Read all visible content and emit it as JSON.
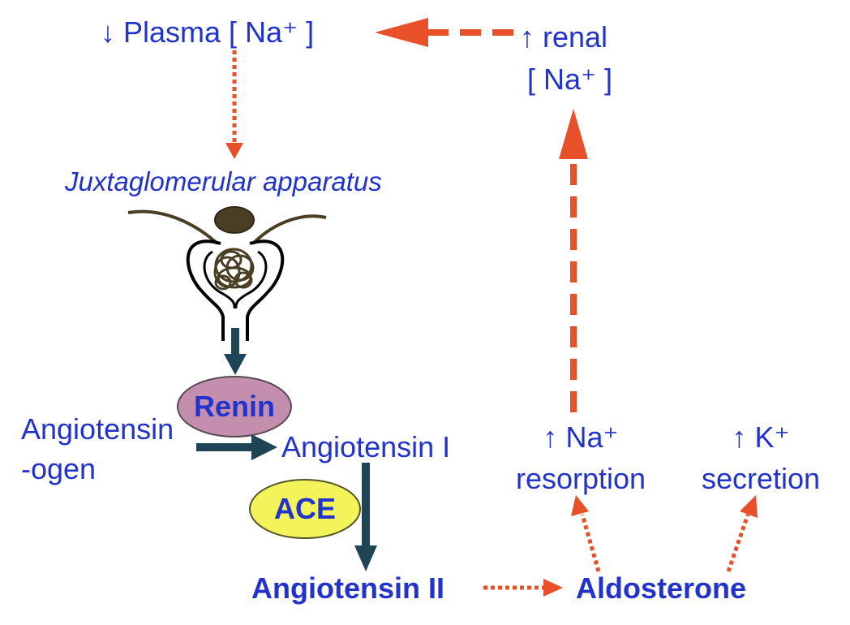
{
  "labels": {
    "plasma": "↓ Plasma [  Na⁺ ]",
    "renal_line1": "↑ renal",
    "renal_line2": "[ Na⁺ ]",
    "jga": "Juxtaglomerular apparatus",
    "renin": "Renin",
    "angiotensinogen_line1": "Angiotensin",
    "angiotensinogen_line2": "-ogen",
    "angiotensin_1": "Angiotensin I",
    "ace": "ACE",
    "angiotensin_2": "Angiotensin II",
    "aldosterone": "Aldosterone",
    "na_resorption_line1": "↑ Na⁺",
    "na_resorption_line2": "resorption",
    "k_secretion_line1": "↑ K⁺",
    "k_secretion_line2": "secretion"
  },
  "colors": {
    "text": "#2233cc",
    "orange_arrow": "#e8502a",
    "dark_arrow": "#1f4455",
    "renin_fill": "#c48fae",
    "ace_fill": "#f3f35a",
    "glomerulus": "#4a3f25"
  },
  "icons": {
    "jga_illustration": "juxtaglomerular-apparatus-icon"
  }
}
